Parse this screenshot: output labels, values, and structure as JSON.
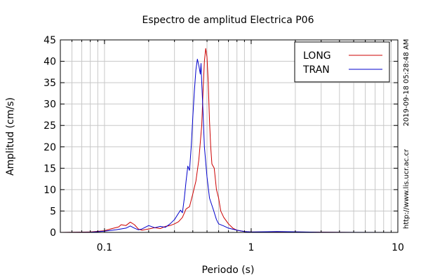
{
  "chart_data": {
    "type": "line",
    "title": "Espectro de amplitud Electrica P06",
    "xlabel": "Periodo (s)",
    "ylabel": "Amplitud (cm/s)",
    "xscale": "log",
    "xlim": [
      0.05,
      10
    ],
    "ylim": [
      0,
      45
    ],
    "x_ticks": [
      0.1,
      1,
      10
    ],
    "x_tick_labels": [
      "0.1",
      "1",
      "10"
    ],
    "y_ticks": [
      0,
      5,
      10,
      15,
      20,
      25,
      30,
      35,
      40,
      45
    ],
    "y_tick_labels": [
      "0",
      "5",
      "10",
      "15",
      "20",
      "25",
      "30",
      "35",
      "40",
      "45"
    ],
    "grid": true,
    "legend_position": "top-right",
    "side_texts": [
      "2019-09-18 05:28:48 AM",
      "http://www.lis.ucr.ac.cr"
    ],
    "series": [
      {
        "name": "LONG",
        "color": "#cc0000",
        "points": [
          [
            0.05,
            0.0
          ],
          [
            0.08,
            0.1
          ],
          [
            0.1,
            0.4
          ],
          [
            0.11,
            0.8
          ],
          [
            0.125,
            1.3
          ],
          [
            0.13,
            1.8
          ],
          [
            0.14,
            1.6
          ],
          [
            0.15,
            2.4
          ],
          [
            0.16,
            1.8
          ],
          [
            0.17,
            0.8
          ],
          [
            0.18,
            0.5
          ],
          [
            0.2,
            0.8
          ],
          [
            0.22,
            1.1
          ],
          [
            0.24,
            0.9
          ],
          [
            0.26,
            1.4
          ],
          [
            0.28,
            1.6
          ],
          [
            0.3,
            2.0
          ],
          [
            0.32,
            2.5
          ],
          [
            0.34,
            3.5
          ],
          [
            0.36,
            5.5
          ],
          [
            0.38,
            6.0
          ],
          [
            0.4,
            9.0
          ],
          [
            0.42,
            12.0
          ],
          [
            0.44,
            17.0
          ],
          [
            0.46,
            25.0
          ],
          [
            0.47,
            33.0
          ],
          [
            0.48,
            40.0
          ],
          [
            0.49,
            43.0
          ],
          [
            0.5,
            41.0
          ],
          [
            0.51,
            35.0
          ],
          [
            0.52,
            26.0
          ],
          [
            0.53,
            20.0
          ],
          [
            0.54,
            16.0
          ],
          [
            0.56,
            15.0
          ],
          [
            0.58,
            10.0
          ],
          [
            0.6,
            8.0
          ],
          [
            0.62,
            5.0
          ],
          [
            0.65,
            3.5
          ],
          [
            0.7,
            2.0
          ],
          [
            0.75,
            1.0
          ],
          [
            0.8,
            0.5
          ],
          [
            0.9,
            0.2
          ],
          [
            1.0,
            0.1
          ],
          [
            2.0,
            0.1
          ],
          [
            5.0,
            0.0
          ],
          [
            10.0,
            0.0
          ]
        ]
      },
      {
        "name": "TRAN",
        "color": "#0000cc",
        "points": [
          [
            0.05,
            0.0
          ],
          [
            0.08,
            0.05
          ],
          [
            0.1,
            0.3
          ],
          [
            0.12,
            0.6
          ],
          [
            0.14,
            1.0
          ],
          [
            0.15,
            1.5
          ],
          [
            0.16,
            1.0
          ],
          [
            0.17,
            0.6
          ],
          [
            0.18,
            0.8
          ],
          [
            0.2,
            1.6
          ],
          [
            0.22,
            1.1
          ],
          [
            0.24,
            1.4
          ],
          [
            0.26,
            1.2
          ],
          [
            0.28,
            2.0
          ],
          [
            0.3,
            3.0
          ],
          [
            0.32,
            4.5
          ],
          [
            0.33,
            5.2
          ],
          [
            0.34,
            4.6
          ],
          [
            0.35,
            8.0
          ],
          [
            0.36,
            12.0
          ],
          [
            0.37,
            15.5
          ],
          [
            0.38,
            14.5
          ],
          [
            0.39,
            20.0
          ],
          [
            0.4,
            27.0
          ],
          [
            0.41,
            33.0
          ],
          [
            0.42,
            38.0
          ],
          [
            0.43,
            40.5
          ],
          [
            0.44,
            39.0
          ],
          [
            0.45,
            37.0
          ],
          [
            0.455,
            39.5
          ],
          [
            0.46,
            35.0
          ],
          [
            0.47,
            28.0
          ],
          [
            0.48,
            20.0
          ],
          [
            0.5,
            13.0
          ],
          [
            0.52,
            8.0
          ],
          [
            0.55,
            5.5
          ],
          [
            0.58,
            3.0
          ],
          [
            0.6,
            2.0
          ],
          [
            0.65,
            1.5
          ],
          [
            0.7,
            1.0
          ],
          [
            0.8,
            0.5
          ],
          [
            0.9,
            0.2
          ],
          [
            1.0,
            0.1
          ],
          [
            1.5,
            0.2
          ],
          [
            3.0,
            0.05
          ],
          [
            10.0,
            0.0
          ]
        ]
      }
    ]
  }
}
